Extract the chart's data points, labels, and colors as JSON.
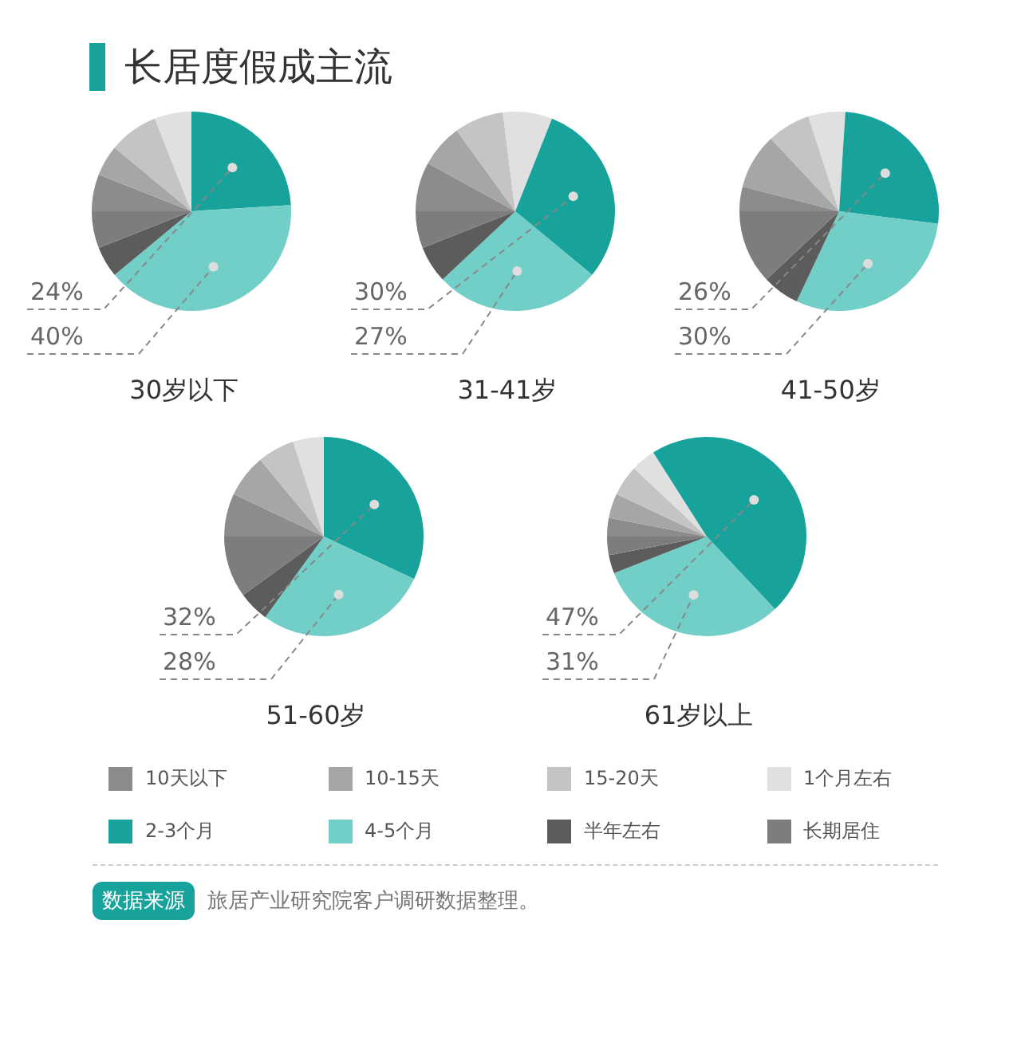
{
  "chart_data": [
    {
      "type": "pie",
      "title": "长居度假成主流",
      "xlabel": "30岁以下",
      "categories": [
        "10天以下",
        "10-15天",
        "15-20天",
        "1个月左右",
        "2-3个月",
        "4-5个月",
        "半年左右",
        "长期居住"
      ],
      "values": [
        6,
        5,
        8,
        6,
        24,
        40,
        5,
        6
      ],
      "colors": [
        "#8c8c8c",
        "#a6a6a6",
        "#c4c4c4",
        "#e0e0e0",
        "#17a39b",
        "#72cfc7",
        "#5c5c5c",
        "#7d7d7d"
      ],
      "value_labels": [
        null,
        null,
        null,
        null,
        "24%",
        "40%",
        null,
        null
      ],
      "legend": "bottom"
    },
    {
      "type": "pie",
      "xlabel": "31-41岁",
      "categories": [
        null,
        null,
        null,
        null,
        null,
        null,
        null,
        null
      ],
      "values": [
        8,
        7,
        8,
        8,
        30,
        27,
        6,
        6
      ],
      "colors": [
        "#8c8c8c",
        "#a6a6a6",
        "#c4c4c4",
        "#e0e0e0",
        "#17a39b",
        "#72cfc7",
        "#5c5c5c",
        "#7d7d7d"
      ],
      "value_labels": [
        null,
        null,
        null,
        null,
        "30%",
        "27%",
        null,
        null
      ]
    },
    {
      "type": "pie",
      "xlabel": "41-50岁",
      "categories": [
        null,
        null,
        null,
        null,
        null,
        null,
        null,
        null
      ],
      "values": [
        4,
        9,
        7,
        6,
        26,
        30,
        6,
        12
      ],
      "colors": [
        "#8c8c8c",
        "#a6a6a6",
        "#c4c4c4",
        "#e0e0e0",
        "#17a39b",
        "#72cfc7",
        "#5c5c5c",
        "#7d7d7d"
      ],
      "value_labels": [
        null,
        null,
        null,
        null,
        "26%",
        "30%",
        null,
        null
      ]
    },
    {
      "type": "pie",
      "xlabel": "51-60岁",
      "categories": [
        null,
        null,
        null,
        null,
        null,
        null,
        null,
        null
      ],
      "values": [
        7,
        7,
        6,
        5,
        32,
        28,
        5,
        10
      ],
      "colors": [
        "#8c8c8c",
        "#a6a6a6",
        "#c4c4c4",
        "#e0e0e0",
        "#17a39b",
        "#72cfc7",
        "#5c5c5c",
        "#7d7d7d"
      ],
      "value_labels": [
        null,
        null,
        null,
        null,
        "32%",
        "28%",
        null,
        null
      ]
    },
    {
      "type": "pie",
      "xlabel": "61岁以上",
      "categories": [
        null,
        null,
        null,
        null,
        null,
        null,
        null,
        null
      ],
      "values": [
        3,
        4,
        5,
        4,
        47,
        31,
        3,
        3
      ],
      "colors": [
        "#8c8c8c",
        "#a6a6a6",
        "#c4c4c4",
        "#e0e0e0",
        "#17a39b",
        "#72cfc7",
        "#5c5c5c",
        "#7d7d7d"
      ],
      "value_labels": [
        null,
        null,
        null,
        null,
        "47%",
        "31%",
        null,
        null
      ],
      "annotations": [
        "数据来源",
        "旅居产业研究院客户调研数据整理。"
      ]
    }
  ]
}
